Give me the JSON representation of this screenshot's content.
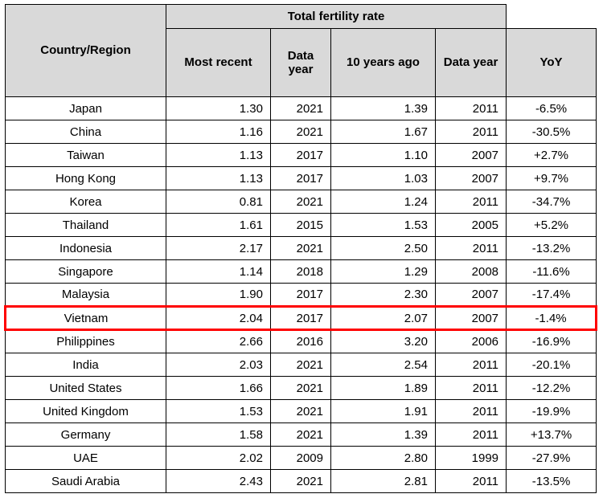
{
  "chart_data": {
    "type": "table",
    "group_header": "Total fertility rate",
    "corner_header": "Country/Region",
    "sub_headers": [
      "Most recent",
      "Data year",
      "10 years ago",
      "Data year"
    ],
    "yoy_header": "YoY",
    "highlighted_row": "Vietnam",
    "rows": [
      {
        "country": "Japan",
        "most_recent": "1.30",
        "data_year_recent": "2021",
        "ten_years_ago": "1.39",
        "data_year_prior": "2011",
        "yoy": "-6.5%",
        "highlighted": false
      },
      {
        "country": "China",
        "most_recent": "1.16",
        "data_year_recent": "2021",
        "ten_years_ago": "1.67",
        "data_year_prior": "2011",
        "yoy": "-30.5%",
        "highlighted": false
      },
      {
        "country": "Taiwan",
        "most_recent": "1.13",
        "data_year_recent": "2017",
        "ten_years_ago": "1.10",
        "data_year_prior": "2007",
        "yoy": "+2.7%",
        "highlighted": false
      },
      {
        "country": "Hong Kong",
        "most_recent": "1.13",
        "data_year_recent": "2017",
        "ten_years_ago": "1.03",
        "data_year_prior": "2007",
        "yoy": "+9.7%",
        "highlighted": false
      },
      {
        "country": "Korea",
        "most_recent": "0.81",
        "data_year_recent": "2021",
        "ten_years_ago": "1.24",
        "data_year_prior": "2011",
        "yoy": "-34.7%",
        "highlighted": false
      },
      {
        "country": "Thailand",
        "most_recent": "1.61",
        "data_year_recent": "2015",
        "ten_years_ago": "1.53",
        "data_year_prior": "2005",
        "yoy": "+5.2%",
        "highlighted": false
      },
      {
        "country": "Indonesia",
        "most_recent": "2.17",
        "data_year_recent": "2021",
        "ten_years_ago": "2.50",
        "data_year_prior": "2011",
        "yoy": "-13.2%",
        "highlighted": false
      },
      {
        "country": "Singapore",
        "most_recent": "1.14",
        "data_year_recent": "2018",
        "ten_years_ago": "1.29",
        "data_year_prior": "2008",
        "yoy": "-11.6%",
        "highlighted": false
      },
      {
        "country": "Malaysia",
        "most_recent": "1.90",
        "data_year_recent": "2017",
        "ten_years_ago": "2.30",
        "data_year_prior": "2007",
        "yoy": "-17.4%",
        "highlighted": false
      },
      {
        "country": "Vietnam",
        "most_recent": "2.04",
        "data_year_recent": "2017",
        "ten_years_ago": "2.07",
        "data_year_prior": "2007",
        "yoy": "-1.4%",
        "highlighted": true
      },
      {
        "country": "Philippines",
        "most_recent": "2.66",
        "data_year_recent": "2016",
        "ten_years_ago": "3.20",
        "data_year_prior": "2006",
        "yoy": "-16.9%",
        "highlighted": false
      },
      {
        "country": "India",
        "most_recent": "2.03",
        "data_year_recent": "2021",
        "ten_years_ago": "2.54",
        "data_year_prior": "2011",
        "yoy": "-20.1%",
        "highlighted": false
      },
      {
        "country": "United States",
        "most_recent": "1.66",
        "data_year_recent": "2021",
        "ten_years_ago": "1.89",
        "data_year_prior": "2011",
        "yoy": "-12.2%",
        "highlighted": false
      },
      {
        "country": "United Kingdom",
        "most_recent": "1.53",
        "data_year_recent": "2021",
        "ten_years_ago": "1.91",
        "data_year_prior": "2011",
        "yoy": "-19.9%",
        "highlighted": false
      },
      {
        "country": "Germany",
        "most_recent": "1.58",
        "data_year_recent": "2021",
        "ten_years_ago": "1.39",
        "data_year_prior": "2011",
        "yoy": "+13.7%",
        "highlighted": false
      },
      {
        "country": "UAE",
        "most_recent": "2.02",
        "data_year_recent": "2009",
        "ten_years_ago": "2.80",
        "data_year_prior": "1999",
        "yoy": "-27.9%",
        "highlighted": false
      },
      {
        "country": "Saudi Arabia",
        "most_recent": "2.43",
        "data_year_recent": "2021",
        "ten_years_ago": "2.81",
        "data_year_prior": "2011",
        "yoy": "-13.5%",
        "highlighted": false
      }
    ]
  },
  "colors": {
    "header_bg": "#d9d9d9",
    "grid_border": "#000000",
    "highlight_border": "#ff0000",
    "background": "#ffffff"
  }
}
